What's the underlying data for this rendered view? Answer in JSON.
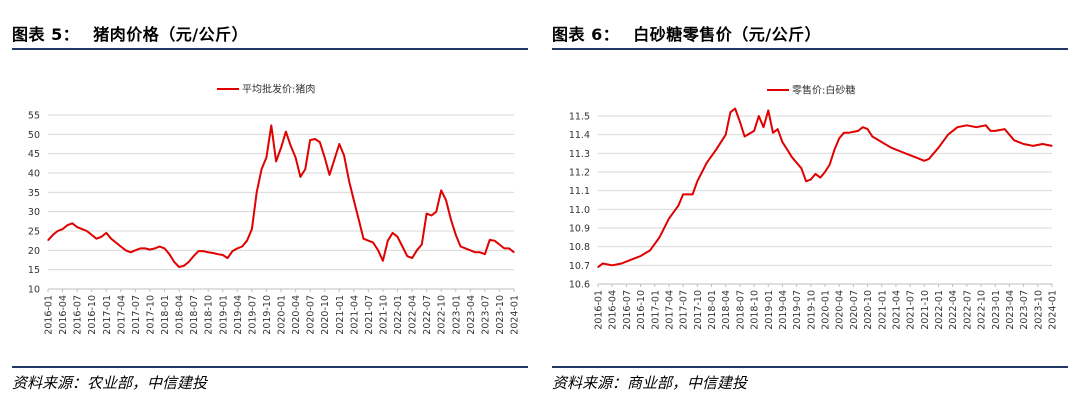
{
  "left": {
    "fig_label": "图表 5：",
    "fig_title": "猪肉价格（元/公斤）",
    "source": "资料来源：农业部，中信建投",
    "chart_data": {
      "type": "line",
      "series": [
        {
          "name": "平均批发价:猪肉",
          "color": "#e00000"
        }
      ],
      "ylim": [
        10,
        55
      ],
      "yticks": [
        10,
        15,
        20,
        25,
        30,
        35,
        40,
        45,
        50,
        55
      ],
      "xrange": [
        "2016-01",
        "2024-01"
      ],
      "xticks": [
        "2016-01",
        "2016-04",
        "2016-07",
        "2016-10",
        "2017-01",
        "2017-04",
        "2017-07",
        "2017-10",
        "2018-01",
        "2018-04",
        "2018-07",
        "2018-10",
        "2019-01",
        "2019-04",
        "2019-07",
        "2019-10",
        "2020-01",
        "2020-04",
        "2020-07",
        "2020-10",
        "2021-01",
        "2021-04",
        "2021-07",
        "2021-10",
        "2022-01",
        "2022-04",
        "2022-07",
        "2022-10",
        "2023-01",
        "2023-04",
        "2023-07",
        "2023-10",
        "2024-01"
      ],
      "points": [
        [
          "2016-01",
          22.6
        ],
        [
          "2016-02",
          24.0
        ],
        [
          "2016-03",
          25.0
        ],
        [
          "2016-04",
          25.5
        ],
        [
          "2016-05",
          26.5
        ],
        [
          "2016-06",
          27.0
        ],
        [
          "2016-07",
          26.0
        ],
        [
          "2016-08",
          25.5
        ],
        [
          "2016-09",
          25.0
        ],
        [
          "2016-10",
          24.0
        ],
        [
          "2016-11",
          23.0
        ],
        [
          "2016-12",
          23.5
        ],
        [
          "2017-01",
          24.5
        ],
        [
          "2017-02",
          23.0
        ],
        [
          "2017-03",
          22.0
        ],
        [
          "2017-04",
          21.0
        ],
        [
          "2017-05",
          20.0
        ],
        [
          "2017-06",
          19.5
        ],
        [
          "2017-07",
          20.0
        ],
        [
          "2017-08",
          20.5
        ],
        [
          "2017-09",
          20.5
        ],
        [
          "2017-10",
          20.2
        ],
        [
          "2017-11",
          20.5
        ],
        [
          "2017-12",
          21.0
        ],
        [
          "2018-01",
          20.5
        ],
        [
          "2018-02",
          19.0
        ],
        [
          "2018-03",
          17.0
        ],
        [
          "2018-04",
          15.7
        ],
        [
          "2018-05",
          16.0
        ],
        [
          "2018-06",
          17.0
        ],
        [
          "2018-07",
          18.5
        ],
        [
          "2018-08",
          19.8
        ],
        [
          "2018-09",
          19.8
        ],
        [
          "2018-10",
          19.5
        ],
        [
          "2018-11",
          19.3
        ],
        [
          "2018-12",
          19.0
        ],
        [
          "2019-01",
          18.8
        ],
        [
          "2019-02",
          18.0
        ],
        [
          "2019-03",
          19.8
        ],
        [
          "2019-04",
          20.5
        ],
        [
          "2019-05",
          21.0
        ],
        [
          "2019-06",
          22.5
        ],
        [
          "2019-07",
          25.5
        ],
        [
          "2019-08",
          35.0
        ],
        [
          "2019-09",
          41.0
        ],
        [
          "2019-10",
          44.0
        ],
        [
          "2019-11",
          52.3
        ],
        [
          "2019-12",
          43.0
        ],
        [
          "2020-01",
          46.5
        ],
        [
          "2020-02",
          50.7
        ],
        [
          "2020-03",
          47.0
        ],
        [
          "2020-04",
          44.0
        ],
        [
          "2020-05",
          39.0
        ],
        [
          "2020-06",
          41.0
        ],
        [
          "2020-07",
          48.5
        ],
        [
          "2020-08",
          48.8
        ],
        [
          "2020-09",
          48.0
        ],
        [
          "2020-10",
          44.0
        ],
        [
          "2020-11",
          39.5
        ],
        [
          "2020-12",
          43.5
        ],
        [
          "2021-01",
          47.5
        ],
        [
          "2021-02",
          44.5
        ],
        [
          "2021-03",
          38.0
        ],
        [
          "2021-04",
          33.0
        ],
        [
          "2021-05",
          28.0
        ],
        [
          "2021-06",
          23.0
        ],
        [
          "2021-07",
          22.5
        ],
        [
          "2021-08",
          22.0
        ],
        [
          "2021-09",
          20.0
        ],
        [
          "2021-10",
          17.3
        ],
        [
          "2021-11",
          22.5
        ],
        [
          "2021-12",
          24.5
        ],
        [
          "2022-01",
          23.5
        ],
        [
          "2022-02",
          21.0
        ],
        [
          "2022-03",
          18.5
        ],
        [
          "2022-04",
          18.0
        ],
        [
          "2022-05",
          20.0
        ],
        [
          "2022-06",
          21.5
        ],
        [
          "2022-07",
          29.5
        ],
        [
          "2022-08",
          29.0
        ],
        [
          "2022-09",
          30.0
        ],
        [
          "2022-10",
          35.5
        ],
        [
          "2022-11",
          33.0
        ],
        [
          "2022-12",
          28.0
        ],
        [
          "2023-01",
          24.0
        ],
        [
          "2023-02",
          21.0
        ],
        [
          "2023-03",
          20.5
        ],
        [
          "2023-04",
          20.0
        ],
        [
          "2023-05",
          19.5
        ],
        [
          "2023-06",
          19.5
        ],
        [
          "2023-07",
          19.0
        ],
        [
          "2023-08",
          22.7
        ],
        [
          "2023-09",
          22.5
        ],
        [
          "2023-10",
          21.5
        ],
        [
          "2023-11",
          20.5
        ],
        [
          "2023-12",
          20.5
        ],
        [
          "2024-01",
          19.5
        ]
      ]
    }
  },
  "right": {
    "fig_label": "图表 6：",
    "fig_title": "白砂糖零售价（元/公斤）",
    "source": "资料来源：商业部，中信建投",
    "chart_data": {
      "type": "line",
      "series": [
        {
          "name": "零售价:白砂糖",
          "color": "#e00000"
        }
      ],
      "ylim": [
        10.6,
        11.5
      ],
      "yticks": [
        10.6,
        10.7,
        10.8,
        10.9,
        11.0,
        11.1,
        11.2,
        11.3,
        11.4,
        11.5
      ],
      "xrange": [
        "2016-01",
        "2024-01"
      ],
      "xticks": [
        "2016-01",
        "2016-04",
        "2016-07",
        "2016-10",
        "2017-01",
        "2017-04",
        "2017-07",
        "2017-10",
        "2018-01",
        "2018-04",
        "2018-07",
        "2018-10",
        "2019-01",
        "2019-04",
        "2019-07",
        "2019-10",
        "2020-01",
        "2020-04",
        "2020-07",
        "2020-10",
        "2021-01",
        "2021-04",
        "2021-07",
        "2021-10",
        "2022-01",
        "2022-04",
        "2022-07",
        "2022-10",
        "2023-01",
        "2023-04",
        "2023-07",
        "2023-10",
        "2024-01"
      ],
      "points": [
        [
          "2016-01",
          10.69
        ],
        [
          "2016-02",
          10.71
        ],
        [
          "2016-04",
          10.7
        ],
        [
          "2016-06",
          10.71
        ],
        [
          "2016-08",
          10.73
        ],
        [
          "2016-10",
          10.75
        ],
        [
          "2016-12",
          10.78
        ],
        [
          "2017-02",
          10.85
        ],
        [
          "2017-04",
          10.95
        ],
        [
          "2017-06",
          11.02
        ],
        [
          "2017-07",
          11.08
        ],
        [
          "2017-09",
          11.08
        ],
        [
          "2017-10",
          11.15
        ],
        [
          "2017-12",
          11.25
        ],
        [
          "2018-02",
          11.32
        ],
        [
          "2018-04",
          11.4
        ],
        [
          "2018-05",
          11.52
        ],
        [
          "2018-06",
          11.54
        ],
        [
          "2018-07",
          11.47
        ],
        [
          "2018-08",
          11.39
        ],
        [
          "2018-10",
          11.42
        ],
        [
          "2018-11",
          11.5
        ],
        [
          "2018-12",
          11.44
        ],
        [
          "2019-01",
          11.53
        ],
        [
          "2019-02",
          11.41
        ],
        [
          "2019-03",
          11.43
        ],
        [
          "2019-04",
          11.36
        ],
        [
          "2019-05",
          11.32
        ],
        [
          "2019-06",
          11.28
        ],
        [
          "2019-07",
          11.25
        ],
        [
          "2019-08",
          11.22
        ],
        [
          "2019-09",
          11.15
        ],
        [
          "2019-10",
          11.16
        ],
        [
          "2019-11",
          11.19
        ],
        [
          "2019-12",
          11.17
        ],
        [
          "2020-01",
          11.2
        ],
        [
          "2020-02",
          11.24
        ],
        [
          "2020-03",
          11.32
        ],
        [
          "2020-04",
          11.38
        ],
        [
          "2020-05",
          11.41
        ],
        [
          "2020-06",
          11.41
        ],
        [
          "2020-08",
          11.42
        ],
        [
          "2020-09",
          11.44
        ],
        [
          "2020-10",
          11.43
        ],
        [
          "2020-11",
          11.39
        ],
        [
          "2021-01",
          11.36
        ],
        [
          "2021-03",
          11.33
        ],
        [
          "2021-05",
          11.31
        ],
        [
          "2021-07",
          11.29
        ],
        [
          "2021-08",
          11.28
        ],
        [
          "2021-10",
          11.26
        ],
        [
          "2021-11",
          11.27
        ],
        [
          "2022-01",
          11.33
        ],
        [
          "2022-03",
          11.4
        ],
        [
          "2022-05",
          11.44
        ],
        [
          "2022-07",
          11.45
        ],
        [
          "2022-09",
          11.44
        ],
        [
          "2022-11",
          11.45
        ],
        [
          "2022-12",
          11.42
        ],
        [
          "2023-01",
          11.42
        ],
        [
          "2023-03",
          11.43
        ],
        [
          "2023-05",
          11.37
        ],
        [
          "2023-07",
          11.35
        ],
        [
          "2023-09",
          11.34
        ],
        [
          "2023-11",
          11.35
        ],
        [
          "2024-01",
          11.34
        ]
      ]
    }
  }
}
